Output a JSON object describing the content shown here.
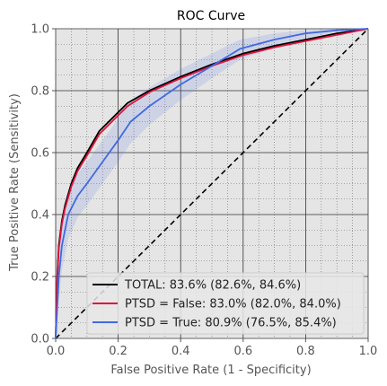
{
  "chart_data": {
    "type": "line",
    "title": "ROC Curve",
    "xlabel": "False Positive Rate (1 - Specificity)",
    "ylabel": "True Positive Rate (Sensitivity)",
    "xlim": [
      0,
      1
    ],
    "ylim": [
      0,
      1
    ],
    "xticks": [
      "0.0",
      "0.2",
      "0.4",
      "0.6",
      "0.8",
      "1.0"
    ],
    "yticks": [
      "0.0",
      "0.2",
      "0.4",
      "0.6",
      "0.8",
      "1.0"
    ],
    "grid": "major and minor",
    "legend_position": "lower-right",
    "background_color": "#e5e5e5",
    "series": [
      {
        "name": "TOTAL: 83.6% (82.6%, 84.6%)",
        "color": "#000000",
        "x": [
          0,
          0.005,
          0.01,
          0.02,
          0.03,
          0.05,
          0.07,
          0.1,
          0.14,
          0.18,
          0.23,
          0.3,
          0.4,
          0.5,
          0.6,
          0.7,
          0.8,
          0.9,
          1.0
        ],
        "y": [
          0,
          0.2,
          0.3,
          0.38,
          0.43,
          0.5,
          0.55,
          0.6,
          0.67,
          0.71,
          0.76,
          0.8,
          0.845,
          0.885,
          0.92,
          0.945,
          0.965,
          0.985,
          1.0
        ]
      },
      {
        "name": "PTSD = False: 83.0% (82.0%, 84.0%)",
        "color": "#dc143c",
        "x": [
          0,
          0.005,
          0.01,
          0.02,
          0.03,
          0.05,
          0.07,
          0.1,
          0.14,
          0.18,
          0.23,
          0.3,
          0.4,
          0.5,
          0.6,
          0.7,
          0.8,
          0.9,
          1.0
        ],
        "y": [
          0,
          0.19,
          0.29,
          0.37,
          0.42,
          0.49,
          0.54,
          0.59,
          0.66,
          0.7,
          0.75,
          0.795,
          0.84,
          0.88,
          0.915,
          0.94,
          0.96,
          0.98,
          1.0
        ]
      },
      {
        "name": "PTSD = True: 80.9% (76.5%, 85.4%)",
        "color": "#4169e1",
        "x": [
          0,
          0.01,
          0.02,
          0.04,
          0.07,
          0.1,
          0.15,
          0.2,
          0.24,
          0.3,
          0.4,
          0.5,
          0.59,
          0.7,
          0.8,
          0.9,
          1.0
        ],
        "y": [
          0,
          0.2,
          0.3,
          0.4,
          0.46,
          0.5,
          0.57,
          0.64,
          0.7,
          0.75,
          0.82,
          0.88,
          0.935,
          0.965,
          0.985,
          0.995,
          1.0
        ],
        "ci_lower": [
          0,
          0.12,
          0.22,
          0.32,
          0.39,
          0.43,
          0.5,
          0.57,
          0.63,
          0.69,
          0.77,
          0.84,
          0.9,
          0.94,
          0.97,
          0.99,
          1.0
        ],
        "ci_upper": [
          0,
          0.28,
          0.38,
          0.48,
          0.53,
          0.57,
          0.64,
          0.71,
          0.77,
          0.81,
          0.87,
          0.92,
          0.965,
          0.985,
          0.995,
          1.0,
          1.0
        ]
      }
    ],
    "reference_line": {
      "x": [
        0,
        1
      ],
      "y": [
        0,
        1
      ],
      "style": "dashed",
      "color": "#000000"
    }
  }
}
